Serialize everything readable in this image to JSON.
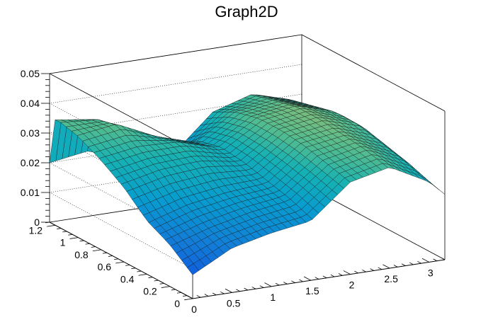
{
  "chart_data": {
    "type": "surface",
    "title": "Graph2D",
    "colormap": "viridis-parula",
    "grid": true,
    "axes": {
      "x": {
        "range": [
          0,
          3.2
        ],
        "ticks": [
          0,
          0.5,
          1,
          1.5,
          2,
          2.5,
          3
        ],
        "tick_labels": [
          "0",
          "0.5",
          "1",
          "1.5",
          "2",
          "2.5",
          "3"
        ]
      },
      "y": {
        "range": [
          0,
          1.25
        ],
        "ticks": [
          0,
          0.2,
          0.4,
          0.6,
          0.8,
          1,
          1.2
        ],
        "tick_labels": [
          "0",
          "0.2",
          "0.4",
          "0.6",
          "0.8",
          "1",
          "1.2"
        ]
      },
      "z": {
        "range": [
          0,
          0.05
        ],
        "ticks": [
          0,
          0.01,
          0.02,
          0.03,
          0.04,
          0.05
        ],
        "tick_labels": [
          "0",
          "0.01",
          "0.02",
          "0.03",
          "0.04",
          "0.05"
        ]
      }
    },
    "x_values": [
      0,
      0.5,
      1,
      1.5,
      2,
      2.5,
      3,
      3.2
    ],
    "y_values": [
      0,
      0.2,
      0.4,
      0.6,
      0.8,
      1,
      1.2,
      1.25
    ],
    "z_values": [
      [
        0.008,
        0.015,
        0.018,
        0.02,
        0.031,
        0.034,
        0.027,
        0.022
      ],
      [
        0.014,
        0.018,
        0.021,
        0.023,
        0.033,
        0.036,
        0.03,
        0.024
      ],
      [
        0.018,
        0.022,
        0.024,
        0.025,
        0.035,
        0.037,
        0.032,
        0.026
      ],
      [
        0.025,
        0.028,
        0.029,
        0.027,
        0.036,
        0.038,
        0.034,
        0.028
      ],
      [
        0.03,
        0.032,
        0.032,
        0.028,
        0.036,
        0.038,
        0.034,
        0.029
      ],
      [
        0.034,
        0.036,
        0.03,
        0.026,
        0.034,
        0.036,
        0.032,
        0.028
      ],
      [
        0.036,
        0.034,
        0.024,
        0.018,
        0.03,
        0.034,
        0.03,
        0.026
      ],
      [
        0.02,
        0.022,
        0.016,
        0.014,
        0.026,
        0.03,
        0.028,
        0.024
      ]
    ]
  }
}
